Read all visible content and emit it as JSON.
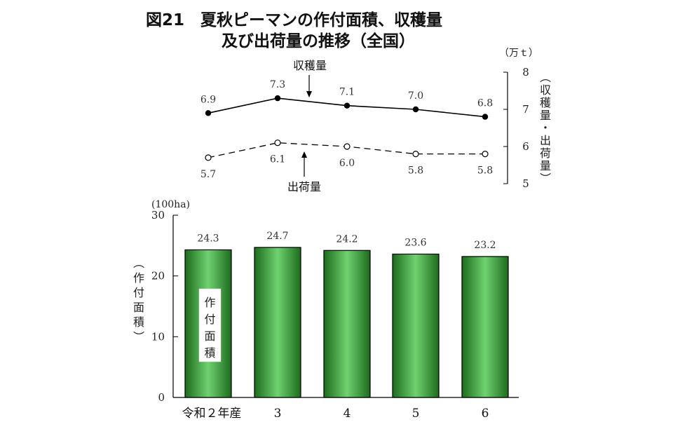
{
  "title_line1": "図21　夏秋ピーマンの作付面積、収穫量",
  "title_line2": "及び出荷量の推移（全国）",
  "chart_data": [
    {
      "type": "line",
      "categories": [
        "令和２年産",
        "3",
        "4",
        "5",
        "6"
      ],
      "series": [
        {
          "name": "収穫量",
          "values": [
            6.9,
            7.3,
            7.1,
            7.0,
            6.8
          ],
          "marker": "filled-circle",
          "style": "solid"
        },
        {
          "name": "出荷量",
          "values": [
            5.7,
            6.1,
            6.0,
            5.8,
            5.8
          ],
          "marker": "open-circle",
          "style": "dashed"
        }
      ],
      "unit": "（万ｔ）",
      "ylabel_chars": [
        "（",
        "収",
        "穫",
        "量",
        "・",
        "出",
        "荷",
        "量",
        "）"
      ],
      "yticks": [
        5,
        6,
        7,
        8
      ],
      "ylim": [
        5,
        8
      ],
      "yaxis_position": "right",
      "grid": false
    },
    {
      "type": "bar",
      "categories": [
        "令和２年産",
        "3",
        "4",
        "5",
        "6"
      ],
      "series": [
        {
          "name": "作付面積",
          "values": [
            24.3,
            24.7,
            24.2,
            23.6,
            23.2
          ]
        }
      ],
      "unit": "(100ha)",
      "ylabel_chars": [
        "（",
        "作",
        "付",
        "面",
        "積",
        "）"
      ],
      "legend_chars": [
        "作",
        "付",
        "面",
        "積"
      ],
      "yticks": [
        0,
        10,
        20,
        30
      ],
      "ylim": [
        0,
        30
      ],
      "grid": false,
      "colors": {
        "bar_dark": "#1d6b1d",
        "bar_light": "#6fd26f",
        "bar_mid": "#3fae3f"
      }
    }
  ]
}
